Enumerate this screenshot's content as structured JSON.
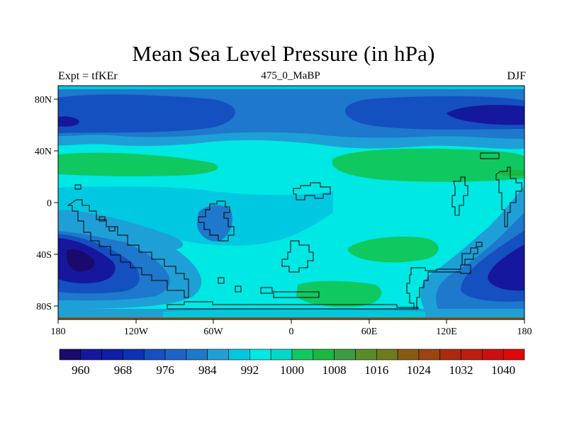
{
  "title": "Mean Sea Level Pressure (in hPa)",
  "subtitle_left": "Expt = tfKEr",
  "subtitle_center": "475_0_MaBP",
  "subtitle_right": "DJF",
  "map": {
    "projection": "cylindrical equidistant",
    "lon_range": [
      -180,
      180
    ],
    "lat_range": [
      -90,
      90
    ],
    "x_tick_labels": [
      "180",
      "120W",
      "60W",
      "0",
      "60E",
      "120E",
      "180"
    ],
    "y_tick_labels": [
      "80N",
      "40N",
      "0",
      "40S",
      "80S"
    ]
  },
  "colorbar": {
    "levels": [
      960,
      964,
      968,
      972,
      976,
      980,
      984,
      988,
      992,
      996,
      1000,
      1004,
      1008,
      1012,
      1016,
      1020,
      1024,
      1028,
      1032,
      1036,
      1040
    ],
    "labels": [
      "960",
      "968",
      "976",
      "984",
      "992",
      "1000",
      "1008",
      "1016",
      "1024",
      "1032",
      "1040"
    ],
    "colors": [
      "#1a0a6e",
      "#15189c",
      "#0f1da8",
      "#0b32b4",
      "#1450c0",
      "#1e64c8",
      "#1e78cc",
      "#1ea0d6",
      "#00c8e0",
      "#00e8e4",
      "#00d8c8",
      "#10c860",
      "#1ab840",
      "#3c9c40",
      "#5a8c28",
      "#6e7c1e",
      "#8a5a14",
      "#9a4410",
      "#aa2a0e",
      "#bc1e0e",
      "#cc1010",
      "#e00808"
    ]
  }
}
